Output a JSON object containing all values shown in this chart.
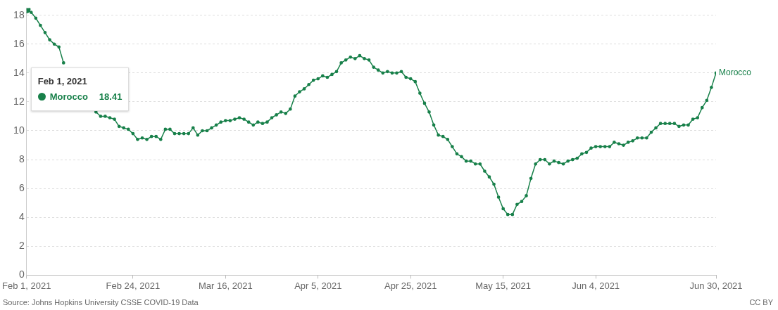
{
  "chart_data": {
    "type": "line",
    "x": [
      "2021-02-01",
      "2021-02-02",
      "2021-02-03",
      "2021-02-04",
      "2021-02-05",
      "2021-02-06",
      "2021-02-07",
      "2021-02-08",
      "2021-02-09",
      "2021-02-10",
      "2021-02-11",
      "2021-02-12",
      "2021-02-13",
      "2021-02-14",
      "2021-02-15",
      "2021-02-16",
      "2021-02-17",
      "2021-02-18",
      "2021-02-19",
      "2021-02-20",
      "2021-02-21",
      "2021-02-22",
      "2021-02-23",
      "2021-02-24",
      "2021-02-25",
      "2021-02-26",
      "2021-02-27",
      "2021-02-28",
      "2021-03-01",
      "2021-03-02",
      "2021-03-03",
      "2021-03-04",
      "2021-03-05",
      "2021-03-06",
      "2021-03-07",
      "2021-03-08",
      "2021-03-09",
      "2021-03-10",
      "2021-03-11",
      "2021-03-12",
      "2021-03-13",
      "2021-03-14",
      "2021-03-15",
      "2021-03-16",
      "2021-03-17",
      "2021-03-18",
      "2021-03-19",
      "2021-03-20",
      "2021-03-21",
      "2021-03-22",
      "2021-03-23",
      "2021-03-24",
      "2021-03-25",
      "2021-03-26",
      "2021-03-27",
      "2021-03-28",
      "2021-03-29",
      "2021-03-30",
      "2021-03-31",
      "2021-04-01",
      "2021-04-02",
      "2021-04-03",
      "2021-04-04",
      "2021-04-05",
      "2021-04-06",
      "2021-04-07",
      "2021-04-08",
      "2021-04-09",
      "2021-04-10",
      "2021-04-11",
      "2021-04-12",
      "2021-04-13",
      "2021-04-14",
      "2021-04-15",
      "2021-04-16",
      "2021-04-17",
      "2021-04-18",
      "2021-04-19",
      "2021-04-20",
      "2021-04-21",
      "2021-04-22",
      "2021-04-23",
      "2021-04-24",
      "2021-04-25",
      "2021-04-26",
      "2021-04-27",
      "2021-04-28",
      "2021-04-29",
      "2021-04-30",
      "2021-05-01",
      "2021-05-02",
      "2021-05-03",
      "2021-05-04",
      "2021-05-05",
      "2021-05-06",
      "2021-05-07",
      "2021-05-08",
      "2021-05-09",
      "2021-05-10",
      "2021-05-11",
      "2021-05-12",
      "2021-05-13",
      "2021-05-14",
      "2021-05-15",
      "2021-05-16",
      "2021-05-17",
      "2021-05-18",
      "2021-05-19",
      "2021-05-20",
      "2021-05-21",
      "2021-05-22",
      "2021-05-23",
      "2021-05-24",
      "2021-05-25",
      "2021-05-26",
      "2021-05-27",
      "2021-05-28",
      "2021-05-29",
      "2021-05-30",
      "2021-05-31",
      "2021-06-01",
      "2021-06-02",
      "2021-06-03",
      "2021-06-04",
      "2021-06-05",
      "2021-06-06",
      "2021-06-07",
      "2021-06-08",
      "2021-06-09",
      "2021-06-10",
      "2021-06-11",
      "2021-06-12",
      "2021-06-13",
      "2021-06-14",
      "2021-06-15",
      "2021-06-16",
      "2021-06-17",
      "2021-06-18",
      "2021-06-19",
      "2021-06-20",
      "2021-06-21",
      "2021-06-22",
      "2021-06-23",
      "2021-06-24",
      "2021-06-25",
      "2021-06-26",
      "2021-06-27",
      "2021-06-28",
      "2021-06-29",
      "2021-06-30"
    ],
    "series": [
      {
        "name": "Morocco",
        "color": "#18804a",
        "values": [
          18.41,
          18.2,
          17.8,
          17.3,
          16.8,
          16.3,
          16.0,
          15.8,
          14.7,
          null,
          null,
          null,
          null,
          null,
          null,
          11.3,
          11.0,
          11.0,
          10.9,
          10.8,
          10.3,
          10.2,
          10.1,
          9.8,
          9.4,
          9.5,
          9.4,
          9.6,
          9.6,
          9.4,
          10.1,
          10.1,
          9.8,
          9.8,
          9.8,
          9.8,
          10.2,
          9.7,
          10.0,
          10.0,
          10.2,
          10.4,
          10.6,
          10.7,
          10.7,
          10.8,
          10.9,
          10.8,
          10.6,
          10.4,
          10.6,
          10.5,
          10.6,
          10.9,
          11.1,
          11.3,
          11.2,
          11.5,
          12.4,
          12.7,
          12.9,
          13.2,
          13.5,
          13.6,
          13.8,
          13.7,
          13.9,
          14.1,
          14.7,
          14.9,
          15.1,
          15.0,
          15.2,
          15.0,
          14.9,
          14.4,
          14.2,
          14.0,
          14.1,
          14.0,
          14.0,
          14.1,
          13.7,
          13.6,
          13.4,
          12.6,
          11.9,
          11.3,
          10.4,
          9.7,
          9.6,
          9.4,
          8.9,
          8.4,
          8.2,
          7.9,
          7.9,
          7.7,
          7.7,
          7.2,
          6.8,
          6.3,
          5.4,
          4.6,
          4.2,
          4.2,
          4.9,
          5.1,
          5.5,
          6.7,
          7.7,
          8.0,
          8.0,
          7.7,
          7.9,
          7.8,
          7.7,
          7.9,
          8.0,
          8.1,
          8.4,
          8.5,
          8.8,
          8.9,
          8.9,
          8.9,
          8.9,
          9.2,
          9.1,
          9.0,
          9.2,
          9.3,
          9.5,
          9.5,
          9.5,
          9.9,
          10.2,
          10.5,
          10.5,
          10.5,
          10.5,
          10.3,
          10.4,
          10.4,
          10.8,
          10.9,
          11.6,
          12.1,
          13.0,
          14.0
        ]
      }
    ],
    "xlim": [
      "2021-02-01",
      "2021-06-30"
    ],
    "xticks": [
      {
        "value": "2021-02-01",
        "label": "Feb 1, 2021"
      },
      {
        "value": "2021-02-24",
        "label": "Feb 24, 2021"
      },
      {
        "value": "2021-03-16",
        "label": "Mar 16, 2021"
      },
      {
        "value": "2021-04-05",
        "label": "Apr 5, 2021"
      },
      {
        "value": "2021-04-25",
        "label": "Apr 25, 2021"
      },
      {
        "value": "2021-05-15",
        "label": "May 15, 2021"
      },
      {
        "value": "2021-06-04",
        "label": "Jun 4, 2021"
      },
      {
        "value": "2021-06-30",
        "label": "Jun 30, 2021"
      }
    ],
    "ylim": [
      0,
      18.5
    ],
    "yticks": [
      0,
      2,
      4,
      6,
      8,
      10,
      12,
      14,
      16,
      18
    ],
    "grid": "y",
    "legend": "top left",
    "marker": "circle",
    "line_style": "solid",
    "annotations": [
      "Source: Johns Hopkins University CSSE COVID-19 Data",
      "CC BY",
      "Feb 1, 2021",
      "18.41"
    ]
  }
}
